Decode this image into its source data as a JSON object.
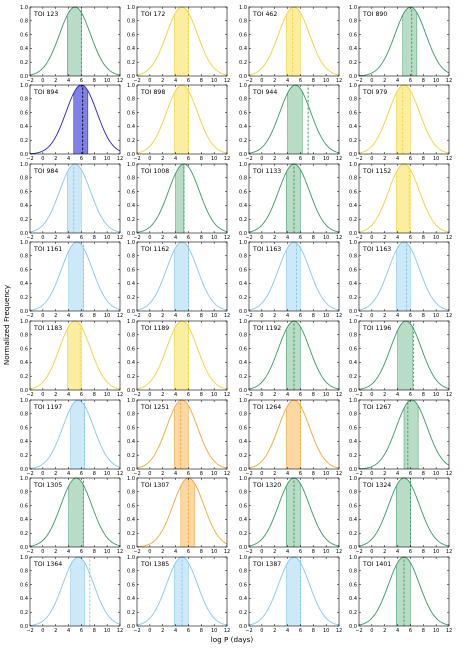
{
  "figure": {
    "xlabel": "log P (days)",
    "ylabel": "Normalized Frequency"
  },
  "chart_data": {
    "type": "line",
    "description_free": true,
    "xlim": [
      -2,
      12
    ],
    "ylim": [
      0.0,
      1.0
    ],
    "xticks": [
      "−2",
      "0",
      "2",
      "4",
      "6",
      "8",
      "10",
      "12"
    ],
    "yticks": [
      "0.0",
      "0.2",
      "0.4",
      "0.6",
      "0.8",
      "1.0"
    ],
    "grid": "5x8",
    "colors": {
      "green": "#3a9a63",
      "yellow": "#f0d23a",
      "blue": "#2222c8",
      "lightblue": "#86c7ea",
      "orange": "#efa83a"
    },
    "fills": {
      "green": "#b9dcc7",
      "yellow": "#fbeea0",
      "blue": "#7f80e8",
      "lightblue": "#cde8f6",
      "orange": "#fad7a3"
    },
    "panels": [
      {
        "label": "TOI 123",
        "color": "green",
        "mu": 5.0,
        "sigma": 2.4,
        "band": [
          3.8,
          6.0
        ],
        "marker": 6.0
      },
      {
        "label": "TOI 172",
        "color": "yellow",
        "mu": 5.0,
        "sigma": 2.4,
        "band": [
          3.8,
          6.0
        ],
        "marker": 6.0
      },
      {
        "label": "TOI 462",
        "color": "yellow",
        "mu": 5.0,
        "sigma": 2.4,
        "band": [
          3.8,
          6.0
        ],
        "marker": 4.8
      },
      {
        "label": "TOI 890",
        "color": "green",
        "mu": 6.0,
        "sigma": 2.4,
        "band": [
          4.8,
          7.0
        ],
        "marker": 6.2
      },
      {
        "label": "TOI 894",
        "color": "blue",
        "mu": 6.0,
        "sigma": 2.4,
        "band": [
          4.8,
          7.0
        ],
        "marker": 6.2
      },
      {
        "label": "TOI 898",
        "color": "yellow",
        "mu": 5.0,
        "sigma": 2.4,
        "band": [
          3.8,
          6.0
        ],
        "marker": 6.0
      },
      {
        "label": "TOI 944",
        "color": "green",
        "mu": 5.2,
        "sigma": 2.4,
        "band": [
          4.0,
          6.3
        ],
        "marker": 7.2
      },
      {
        "label": "TOI 979",
        "color": "yellow",
        "mu": 5.0,
        "sigma": 2.4,
        "band": [
          3.8,
          6.0
        ],
        "marker": 4.8
      },
      {
        "label": "TOI 984",
        "color": "lightblue",
        "mu": 5.0,
        "sigma": 2.4,
        "band": [
          3.8,
          6.0
        ],
        "marker": 4.8
      },
      {
        "label": "TOI 1008",
        "color": "green",
        "mu": 5.3,
        "sigma": 2.4,
        "band": [
          4.0,
          5.3
        ],
        "marker": 5.3
      },
      {
        "label": "TOI 1133",
        "color": "green",
        "mu": 5.0,
        "sigma": 2.4,
        "band": [
          3.8,
          6.0
        ],
        "marker": 5.0
      },
      {
        "label": "TOI 1152",
        "color": "yellow",
        "mu": 5.0,
        "sigma": 2.4,
        "band": [
          3.8,
          6.0
        ],
        "marker": 5.8
      },
      {
        "label": "TOI 1161",
        "color": "lightblue",
        "mu": 5.3,
        "sigma": 2.4,
        "band": [
          4.0,
          6.3
        ],
        "marker": 6.3
      },
      {
        "label": "TOI 1162",
        "color": "lightblue",
        "mu": 5.0,
        "sigma": 2.4,
        "band": [
          3.8,
          6.0
        ],
        "marker": 6.0
      },
      {
        "label": "TOI 1163",
        "color": "lightblue",
        "mu": 5.0,
        "sigma": 2.4,
        "band": [
          3.8,
          6.0
        ],
        "marker": 5.4
      },
      {
        "label": "TOI 1163",
        "color": "lightblue",
        "mu": 5.0,
        "sigma": 2.4,
        "band": [
          3.8,
          6.0
        ],
        "marker": 5.4
      },
      {
        "label": "TOI 1183",
        "color": "yellow",
        "mu": 5.0,
        "sigma": 2.4,
        "band": [
          3.8,
          6.0
        ],
        "marker": 5.8
      },
      {
        "label": "TOI 1189",
        "color": "yellow",
        "mu": 5.0,
        "sigma": 2.4,
        "band": [
          3.8,
          6.0
        ],
        "marker": 6.0
      },
      {
        "label": "TOI 1192",
        "color": "green",
        "mu": 5.0,
        "sigma": 2.4,
        "band": [
          3.8,
          6.0
        ],
        "marker": 5.0
      },
      {
        "label": "TOI 1196",
        "color": "green",
        "mu": 5.3,
        "sigma": 2.4,
        "band": [
          4.0,
          6.3
        ],
        "marker": 6.5
      },
      {
        "label": "TOI 1197",
        "color": "lightblue",
        "mu": 5.5,
        "sigma": 2.4,
        "band": [
          4.3,
          6.5
        ],
        "marker": 6.5
      },
      {
        "label": "TOI 1251",
        "color": "orange",
        "mu": 5.0,
        "sigma": 2.4,
        "band": [
          3.8,
          6.0
        ],
        "marker": 4.8
      },
      {
        "label": "TOI 1264",
        "color": "orange",
        "mu": 5.0,
        "sigma": 2.4,
        "band": [
          3.8,
          6.0
        ],
        "marker": 6.0
      },
      {
        "label": "TOI 1267",
        "color": "green",
        "mu": 6.2,
        "sigma": 2.4,
        "band": [
          5.0,
          7.2
        ],
        "marker": 5.6
      },
      {
        "label": "TOI 1305",
        "color": "green",
        "mu": 5.2,
        "sigma": 2.4,
        "band": [
          4.0,
          6.3
        ],
        "marker": 6.3
      },
      {
        "label": "TOI 1307",
        "color": "orange",
        "mu": 6.0,
        "sigma": 2.4,
        "band": [
          4.8,
          7.0
        ],
        "marker": 6.0
      },
      {
        "label": "TOI 1320",
        "color": "green",
        "mu": 5.0,
        "sigma": 2.4,
        "band": [
          3.8,
          6.0
        ],
        "marker": 5.0
      },
      {
        "label": "TOI 1324",
        "color": "green",
        "mu": 5.0,
        "sigma": 2.4,
        "band": [
          3.8,
          6.0
        ],
        "marker": 6.0
      },
      {
        "label": "TOI 1364",
        "color": "lightblue",
        "mu": 5.5,
        "sigma": 2.4,
        "band": [
          4.3,
          6.5
        ],
        "marker": 7.3
      },
      {
        "label": "TOI 1385",
        "color": "lightblue",
        "mu": 5.0,
        "sigma": 2.4,
        "band": [
          3.8,
          6.0
        ],
        "marker": 5.0
      },
      {
        "label": "TOI 1387",
        "color": "lightblue",
        "mu": 5.0,
        "sigma": 2.4,
        "band": [
          3.8,
          6.0
        ],
        "marker": 6.0
      },
      {
        "label": "TOI 1401",
        "color": "green",
        "mu": 5.0,
        "sigma": 2.4,
        "band": [
          3.8,
          6.0
        ],
        "marker": 5.0
      }
    ]
  }
}
